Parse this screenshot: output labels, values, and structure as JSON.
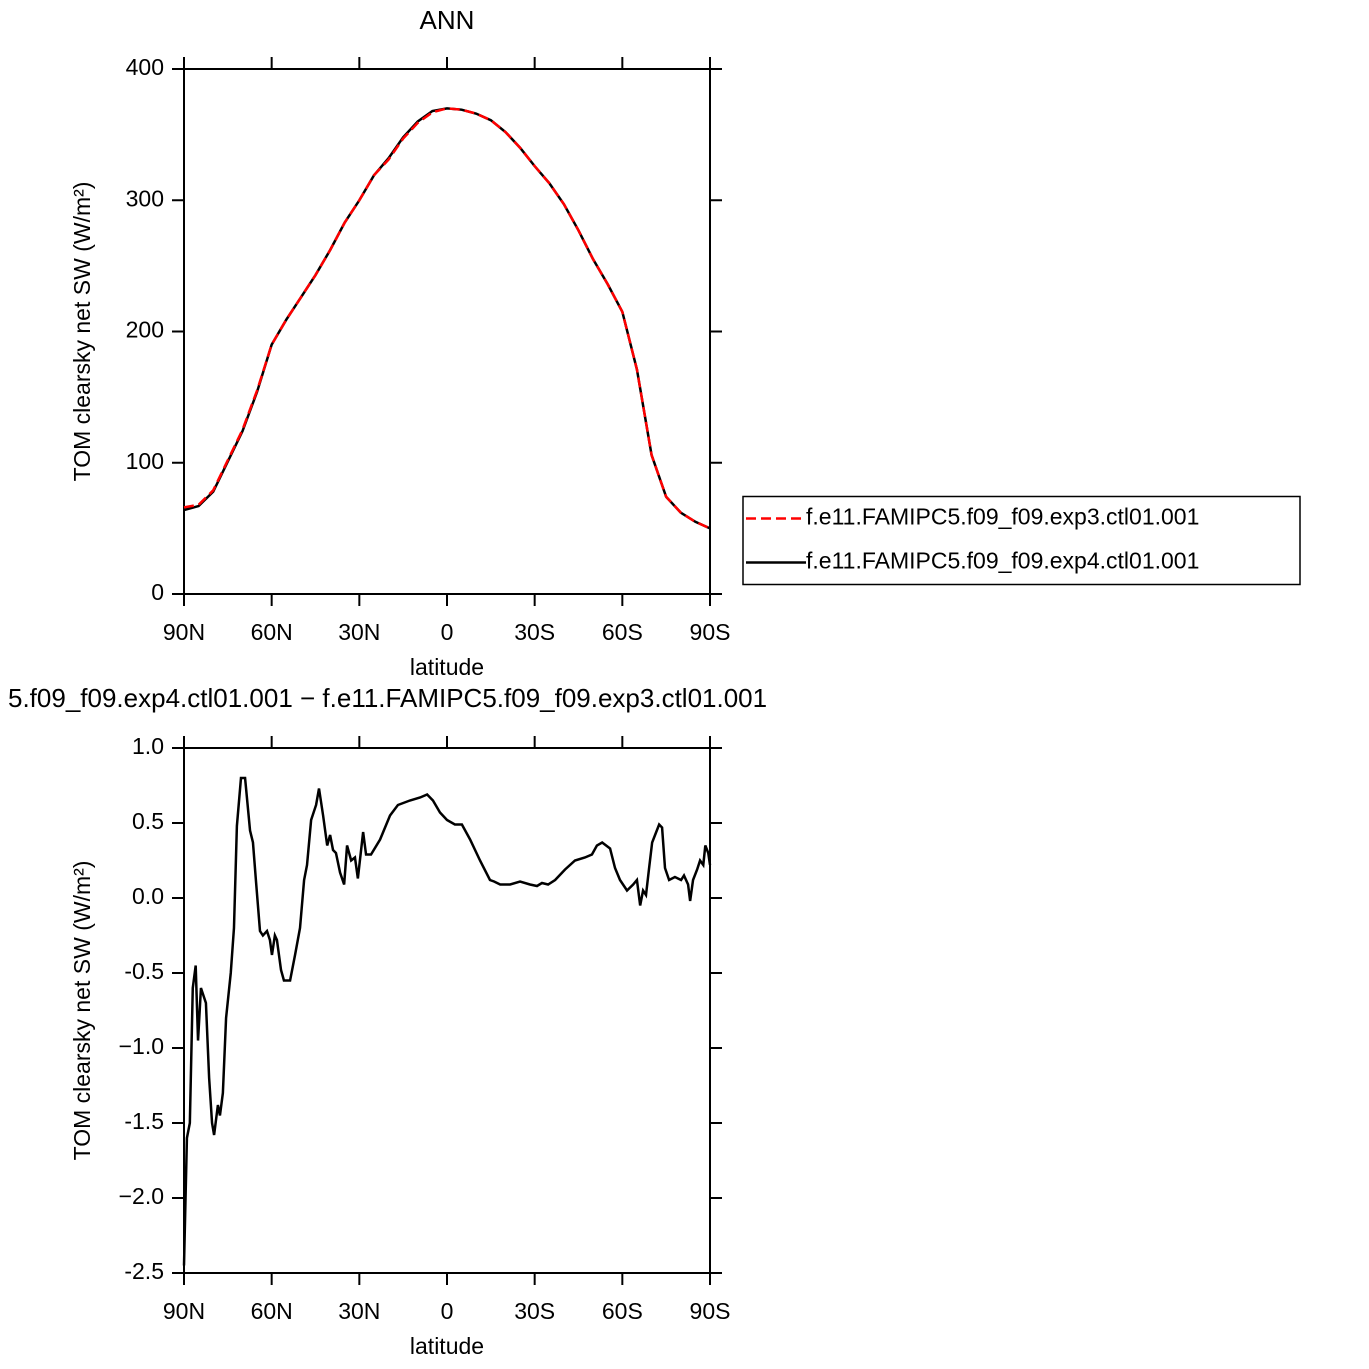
{
  "chart_data": [
    {
      "type": "line",
      "title": "ANN",
      "xlabel": "latitude",
      "ylabel": "TOM clearsky net SW (W/m²)",
      "x": [
        90,
        85,
        80,
        75,
        70,
        65,
        60,
        55,
        50,
        45,
        40,
        35,
        30,
        25,
        20,
        15,
        10,
        5,
        0,
        -5,
        -10,
        -15,
        -20,
        -25,
        -30,
        -35,
        -40,
        -45,
        -50,
        -55,
        -60,
        -65,
        -70,
        -75,
        -80,
        -85,
        -88,
        -90
      ],
      "series": [
        {
          "name": "f.e11.FAMIPC5.f09_f09.exp3.ctl01.001",
          "color": "#ff0000",
          "dashed": true,
          "values": [
            66,
            68,
            79,
            102,
            125,
            155,
            190,
            209,
            226,
            243,
            262,
            283,
            300,
            319,
            331,
            347,
            359,
            367,
            370,
            369,
            366,
            361,
            352,
            340,
            326,
            313,
            297,
            277,
            255,
            236,
            215,
            171,
            106,
            74,
            62,
            55,
            52,
            50
          ]
        },
        {
          "name": "f.e11.FAMIPC5.f09_f09.exp4.ctl01.001",
          "color": "#000000",
          "dashed": false,
          "values": [
            64,
            67,
            78,
            101,
            124,
            154,
            190,
            209,
            226,
            243,
            262,
            283,
            300,
            319,
            332,
            348,
            360,
            368,
            370,
            369,
            366,
            361,
            352,
            340,
            326,
            313,
            297,
            277,
            255,
            236,
            215,
            171,
            106,
            74,
            62,
            55,
            52,
            50
          ]
        }
      ],
      "xlim": [
        90,
        -90
      ],
      "xticks": [
        {
          "value": 90,
          "label": "90N"
        },
        {
          "value": 60,
          "label": "60N"
        },
        {
          "value": 30,
          "label": "30N"
        },
        0,
        {
          "value": -30,
          "label": "30S"
        },
        {
          "value": -60,
          "label": "60S"
        },
        {
          "value": -90,
          "label": "90S"
        }
      ],
      "ylim": [
        0,
        400
      ],
      "yticks": [
        0,
        100,
        200,
        300,
        400
      ],
      "legend": "right"
    },
    {
      "type": "line",
      "title": "5.f09_f09.exp4.ctl01.001  −  f.e11.FAMIPC5.f09_f09.exp3.ctl01.001",
      "xlabel": "latitude",
      "ylabel": "TOM clearsky net SW (W/m²)",
      "x": [
        90,
        89,
        88,
        87,
        86,
        85.2,
        84.2,
        82.5,
        81.4,
        80.4,
        79.7,
        78.4,
        77.7,
        76.7,
        75.6,
        74,
        72.9,
        71.9,
        70.5,
        69.1,
        67.4,
        66.4,
        65.4,
        64,
        63,
        61.6,
        60.6,
        59.9,
        58.9,
        58.2,
        56.8,
        55.8,
        53.7,
        52,
        50.3,
        48.9,
        47.9,
        46.5,
        44.8,
        43.8,
        42.4,
        41,
        40,
        39,
        38,
        36.6,
        35.2,
        34.2,
        32.8,
        31.5,
        30.5,
        28.7,
        27.7,
        26,
        22.9,
        19.5,
        16.8,
        12.7,
        9.2,
        6.8,
        4.8,
        2.4,
        0,
        -2.7,
        -5.1,
        -7.9,
        -11.3,
        -14.7,
        -16.1,
        -18.2,
        -21.6,
        -25,
        -28.4,
        -30.8,
        -32.5,
        -34.6,
        -37,
        -40.4,
        -43.8,
        -47.2,
        -49.6,
        -51.3,
        -53.1,
        -55.8,
        -57.5,
        -59.2,
        -61.6,
        -63.7,
        -65,
        -66.1,
        -67.1,
        -68.1,
        -69.1,
        -70.2,
        -71.2,
        -72.6,
        -73.6,
        -74.6,
        -76,
        -78,
        -80.1,
        -81.1,
        -82.5,
        -83.2,
        -84.2,
        -85.6,
        -86.6,
        -87.7,
        -88.4,
        -89.4,
        -90
      ],
      "series": [
        {
          "color": "#000000",
          "dashed": false,
          "values": [
            -2.45,
            -1.6,
            -1.5,
            -0.6,
            -0.45,
            -0.95,
            -0.6,
            -0.7,
            -1.2,
            -1.5,
            -1.58,
            -1.38,
            -1.45,
            -1.3,
            -0.8,
            -0.5,
            -0.2,
            0.48,
            0.8,
            0.8,
            0.45,
            0.37,
            0.12,
            -0.22,
            -0.25,
            -0.22,
            -0.28,
            -0.38,
            -0.25,
            -0.28,
            -0.48,
            -0.55,
            -0.55,
            -0.38,
            -0.2,
            0.12,
            0.22,
            0.52,
            0.62,
            0.73,
            0.55,
            0.35,
            0.42,
            0.32,
            0.3,
            0.17,
            0.09,
            0.35,
            0.25,
            0.27,
            0.13,
            0.44,
            0.29,
            0.29,
            0.39,
            0.55,
            0.62,
            0.65,
            0.67,
            0.69,
            0.65,
            0.57,
            0.52,
            0.49,
            0.49,
            0.39,
            0.25,
            0.12,
            0.11,
            0.09,
            0.09,
            0.11,
            0.09,
            0.08,
            0.1,
            0.09,
            0.12,
            0.19,
            0.25,
            0.27,
            0.29,
            0.35,
            0.37,
            0.33,
            0.2,
            0.12,
            0.05,
            0.09,
            0.12,
            -0.05,
            0.05,
            0.02,
            0.19,
            0.37,
            0.42,
            0.49,
            0.47,
            0.2,
            0.12,
            0.14,
            0.12,
            0.15,
            0.09,
            -0.02,
            0.12,
            0.19,
            0.25,
            0.22,
            0.35,
            0.3,
            0.22
          ]
        }
      ],
      "xlim": [
        90,
        -90
      ],
      "xticks": [
        {
          "value": 90,
          "label": "90N"
        },
        {
          "value": 60,
          "label": "60N"
        },
        {
          "value": 30,
          "label": "30N"
        },
        0,
        {
          "value": -30,
          "label": "30S"
        },
        {
          "value": -60,
          "label": "60S"
        },
        {
          "value": -90,
          "label": "90S"
        }
      ],
      "ylim": [
        -2.5,
        1
      ],
      "yticks": [
        -2.5,
        {
          "value": -2,
          "label": "−2.0"
        },
        -1.5,
        {
          "value": -1,
          "label": "−1.0"
        },
        -0.5,
        {
          "value": 0,
          "label": "0.0"
        },
        0.5,
        {
          "value": 1,
          "label": "1.0"
        }
      ]
    }
  ]
}
